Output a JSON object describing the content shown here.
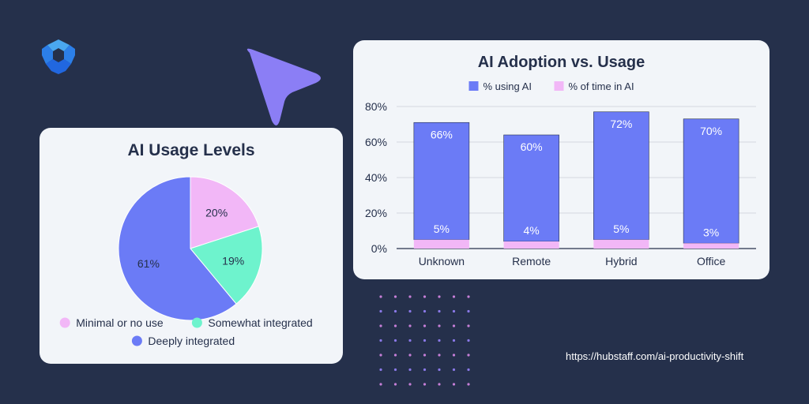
{
  "colors": {
    "background": "#25304b",
    "card": "#f2f5f9",
    "deep_blue": "#6b7bf6",
    "pink": "#f2b7f7",
    "mint": "#6ef3cd",
    "accent_triangle": "#8b7ef5",
    "logo_light": "#4aa8f0",
    "logo_dark": "#2167e0"
  },
  "icons": {
    "logo": "hubstaff-logo-icon",
    "decor": "triangle-pointer-decor"
  },
  "source_url": "https://hubstaff.com/ai-productivity-shift",
  "chart_data": [
    {
      "type": "pie",
      "title": "AI Usage Levels",
      "slices": [
        {
          "label": "Minimal or no use",
          "value": 20,
          "text": "20%",
          "color": "#f2b7f7"
        },
        {
          "label": "Somewhat integrated",
          "value": 19,
          "text": "19%",
          "color": "#6ef3cd"
        },
        {
          "label": "Deeply integrated",
          "value": 61,
          "text": "61%",
          "color": "#6b7bf6"
        }
      ],
      "legend_position": "bottom"
    },
    {
      "type": "bar",
      "stacked": true,
      "title": "AI Adoption vs. Usage",
      "categories": [
        "Unknown",
        "Remote",
        "Hybrid",
        "Office"
      ],
      "series": [
        {
          "name": "% using AI",
          "values": [
            66,
            60,
            72,
            70
          ],
          "labels": [
            "66%",
            "60%",
            "72%",
            "70%"
          ],
          "color": "#6b7bf6"
        },
        {
          "name": "% of time in AI",
          "values": [
            5,
            4,
            5,
            3
          ],
          "labels": [
            "5%",
            "4%",
            "5%",
            "3%"
          ],
          "color": "#f2b7f7"
        }
      ],
      "y_ticks": [
        "0%",
        "20%",
        "40%",
        "60%",
        "80%"
      ],
      "ylim": [
        0,
        80
      ],
      "grid": true,
      "legend_position": "top"
    }
  ]
}
